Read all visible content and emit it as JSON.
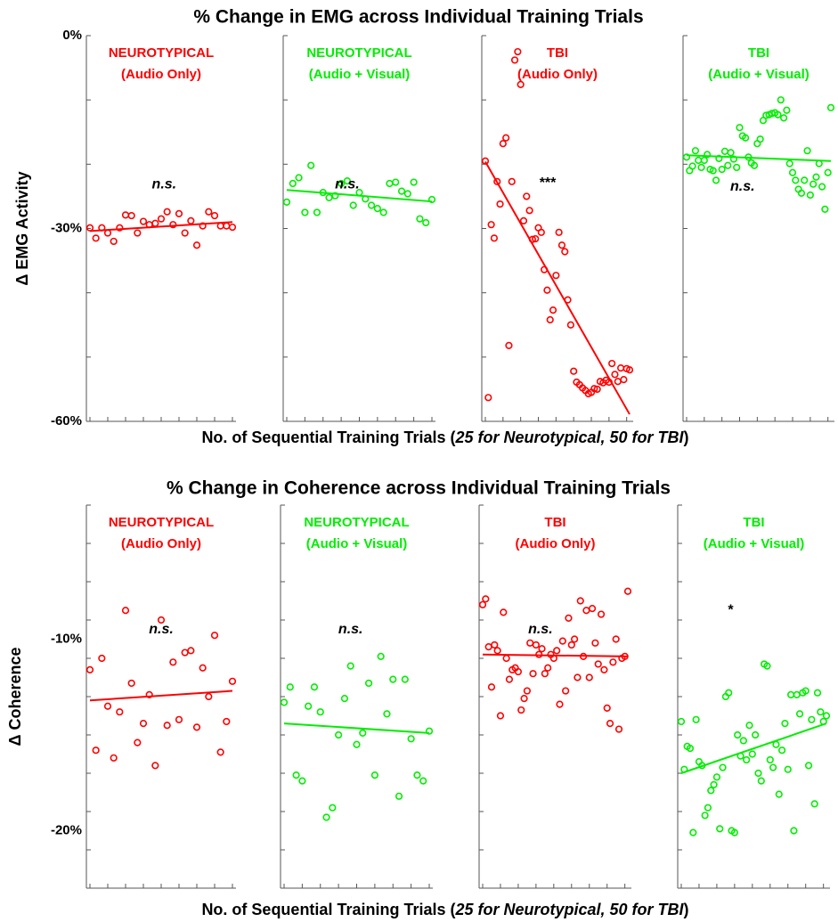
{
  "chart_data": [
    {
      "type": "scatter",
      "title": "% Change in EMG across Individual Training Trials",
      "xlabel": {
        "prefix": "No. of Sequential Training Trials (",
        "italic": "25 for Neurotypical, 50 for TBI",
        "suffix": ")"
      },
      "ylabel": "Δ EMG Activity",
      "ylim": [
        -60,
        0
      ],
      "yticks": [
        {
          "value": 0,
          "label": "0%"
        },
        {
          "value": -30,
          "label": "-30%"
        },
        {
          "value": -60,
          "label": "-60%"
        }
      ],
      "panels": [
        {
          "label_line1": "NEUROTYPICAL",
          "label_line2": "(Audio Only)",
          "color": "#ff0000",
          "significance": "n.s.",
          "sig_pos": {
            "x": 13.5,
            "y": -23.2
          },
          "n_trials": 25,
          "trend": {
            "start": -30.4,
            "end": -29.0
          },
          "points": [
            -29.9,
            -31.5,
            -29.9,
            -30.7,
            -32.0,
            -29.9,
            -27.9,
            -28.0,
            -30.7,
            -28.9,
            -29.4,
            -29.2,
            -28.5,
            -27.4,
            -29.4,
            -27.7,
            -30.7,
            -28.8,
            -32.6,
            -29.6,
            -27.4,
            -28.0,
            -29.6,
            -29.6,
            -29.8
          ]
        },
        {
          "label_line1": "NEUROTYPICAL",
          "label_line2": "(Audio + Visual)",
          "color": "#00ee00",
          "significance": "n.s.",
          "sig_pos": {
            "x": 11.0,
            "y": -23.2
          },
          "n_trials": 25,
          "trend": {
            "start": -24.0,
            "end": -25.8
          },
          "points": [
            -25.9,
            -23.0,
            -22.1,
            -27.5,
            -20.2,
            -27.5,
            -24.4,
            -25.2,
            -24.9,
            -23.0,
            -22.6,
            -26.4,
            -24.4,
            -25.4,
            -26.4,
            -26.9,
            -27.5,
            -23.0,
            -22.8,
            -24.2,
            -24.6,
            -22.8,
            -28.5,
            -29.1,
            -25.5
          ]
        },
        {
          "label_line1": "TBI",
          "label_line2": "(Audio Only)",
          "color": "#ff0000",
          "significance": "***",
          "sig_pos": {
            "x": 22.0,
            "y": -23.0
          },
          "n_trials": 50,
          "trend": {
            "start": -19.6,
            "end": -58.9
          },
          "points": [
            -19.5,
            -56.3,
            -29.4,
            -31.5,
            -22.7,
            -26.2,
            -16.8,
            -15.9,
            -48.2,
            -22.7,
            -3.8,
            -2.5,
            -7.6,
            -28.8,
            -25.0,
            -27.2,
            -31.7,
            -31.6,
            -29.9,
            -30.6,
            -36.4,
            -39.6,
            -44.2,
            -42.7,
            -37.3,
            -30.6,
            -32.6,
            -33.6,
            -41.1,
            -45.0,
            -52.2,
            -53.9,
            -54.3,
            -54.8,
            -55.2,
            -55.7,
            -55.5,
            -54.9,
            -55.0,
            -53.8,
            -54.0,
            -53.6,
            -53.9,
            -51.0,
            -52.7,
            -53.8,
            -51.7,
            -53.5,
            -51.8,
            -52.0
          ]
        },
        {
          "label_line1": "TBI",
          "label_line2": "(Audio + Visual)",
          "color": "#00ee00",
          "significance": "n.s.",
          "sig_pos": {
            "x": 20.0,
            "y": -23.5
          },
          "n_trials": 50,
          "trend": {
            "start": -18.6,
            "end": -19.5
          },
          "points": [
            -18.9,
            -21.0,
            -20.3,
            -17.9,
            -19.4,
            -20.5,
            -19.4,
            -18.5,
            -20.8,
            -21.0,
            -22.5,
            -19.1,
            -20.8,
            -18.0,
            -20.2,
            -18.2,
            -19.2,
            -20.5,
            -14.3,
            -15.6,
            -15.9,
            -18.9,
            -19.8,
            -20.2,
            -16.8,
            -16.1,
            -13.2,
            -12.4,
            -12.3,
            -12.1,
            -12.0,
            -12.3,
            -10.0,
            -12.8,
            -11.6,
            -19.9,
            -21.3,
            -22.5,
            -23.9,
            -24.5,
            -22.5,
            -17.9,
            -24.8,
            -23.1,
            -22.0,
            -19.9,
            -23.5,
            -27.0,
            -21.3,
            -11.2
          ]
        }
      ]
    },
    {
      "type": "scatter",
      "title": "% Change in Coherence across Individual Training Trials",
      "xlabel": {
        "prefix": "No. of Sequential Training Trials (",
        "italic": "25 for Neurotypical, 50 for TBI",
        "suffix": ")"
      },
      "ylabel": "Δ Coherence",
      "ylim": [
        -23,
        -3
      ],
      "yticks": [
        {
          "value": -10,
          "label": "-10%"
        },
        {
          "value": -20,
          "label": "-20%"
        }
      ],
      "panels": [
        {
          "label_line1": "NEUROTYPICAL",
          "label_line2": "(Audio Only)",
          "color": "#ff0000",
          "significance": "n.s.",
          "sig_pos": {
            "x": 13.0,
            "y": -9.5
          },
          "n_trials": 25,
          "trend": {
            "start": -13.2,
            "end": -12.7
          },
          "points": [
            -11.6,
            -15.8,
            -11.0,
            -13.5,
            -16.2,
            -13.8,
            -8.5,
            -12.3,
            -15.4,
            -14.4,
            -12.9,
            -16.6,
            -9.0,
            -14.5,
            -11.2,
            -14.2,
            -10.7,
            -10.6,
            -14.6,
            -11.5,
            -13.0,
            -9.8,
            -15.9,
            -14.3,
            -12.2
          ]
        },
        {
          "label_line1": "NEUROTYPICAL",
          "label_line2": "(Audio + Visual)",
          "color": "#00ee00",
          "significance": "n.s.",
          "sig_pos": {
            "x": 12.0,
            "y": -9.5
          },
          "n_trials": 25,
          "trend": {
            "start": -14.4,
            "end": -14.9
          },
          "points": [
            -13.3,
            -12.5,
            -17.1,
            -17.4,
            -13.5,
            -12.5,
            -13.8,
            -19.3,
            -18.8,
            -15.0,
            -13.1,
            -11.4,
            -15.5,
            -14.9,
            -12.3,
            -17.1,
            -10.9,
            -13.9,
            -12.1,
            -18.2,
            -12.1,
            -15.2,
            -17.1,
            -17.4,
            -14.8
          ]
        },
        {
          "label_line1": "TBI",
          "label_line2": "(Audio Only)",
          "color": "#ff0000",
          "significance": "n.s.",
          "sig_pos": {
            "x": 20.5,
            "y": -9.5
          },
          "n_trials": 50,
          "trend": {
            "start": -10.8,
            "end": -10.9
          },
          "points": [
            -8.2,
            -7.9,
            -10.4,
            -12.5,
            -10.3,
            -10.6,
            -14.0,
            -8.6,
            -11.0,
            -12.1,
            -11.6,
            -11.5,
            -11.7,
            -13.7,
            -13.1,
            -12.7,
            -10.2,
            -11.8,
            -10.3,
            -10.8,
            -10.5,
            -11.8,
            -11.5,
            -10.8,
            -11.0,
            -10.6,
            -13.4,
            -10.1,
            -12.7,
            -8.9,
            -10.3,
            -10.0,
            -12.0,
            -8.0,
            -10.9,
            -8.5,
            -12.0,
            -8.4,
            -10.2,
            -11.3,
            -8.7,
            -11.6,
            -13.6,
            -14.4,
            -11.2,
            -10.0,
            -14.7,
            -11.0,
            -10.9,
            -7.5
          ]
        },
        {
          "label_line1": "TBI",
          "label_line2": "(Audio + Visual)",
          "color": "#00ee00",
          "significance": "*",
          "sig_pos": {
            "x": 17.5,
            "y": -8.5
          },
          "n_trials": 50,
          "trend": {
            "start": -17.0,
            "end": -14.4
          },
          "points": [
            -14.3,
            -16.8,
            -15.6,
            -15.7,
            -20.1,
            -14.2,
            -16.4,
            -16.6,
            -19.2,
            -18.8,
            -17.9,
            -17.6,
            -17.2,
            -19.9,
            -16.7,
            -13.0,
            -12.8,
            -20.0,
            -20.1,
            -15.0,
            -16.1,
            -15.3,
            -16.3,
            -14.5,
            -16.0,
            -15.0,
            -17.0,
            -17.4,
            -11.3,
            -11.4,
            -16.3,
            -16.7,
            -15.5,
            -18.1,
            -15.8,
            -14.4,
            -16.8,
            -12.9,
            -20.0,
            -12.9,
            -13.9,
            -12.8,
            -12.7,
            -16.6,
            -14.2,
            -18.6,
            -12.8,
            -13.8,
            -14.3,
            -14.0
          ]
        }
      ]
    }
  ]
}
